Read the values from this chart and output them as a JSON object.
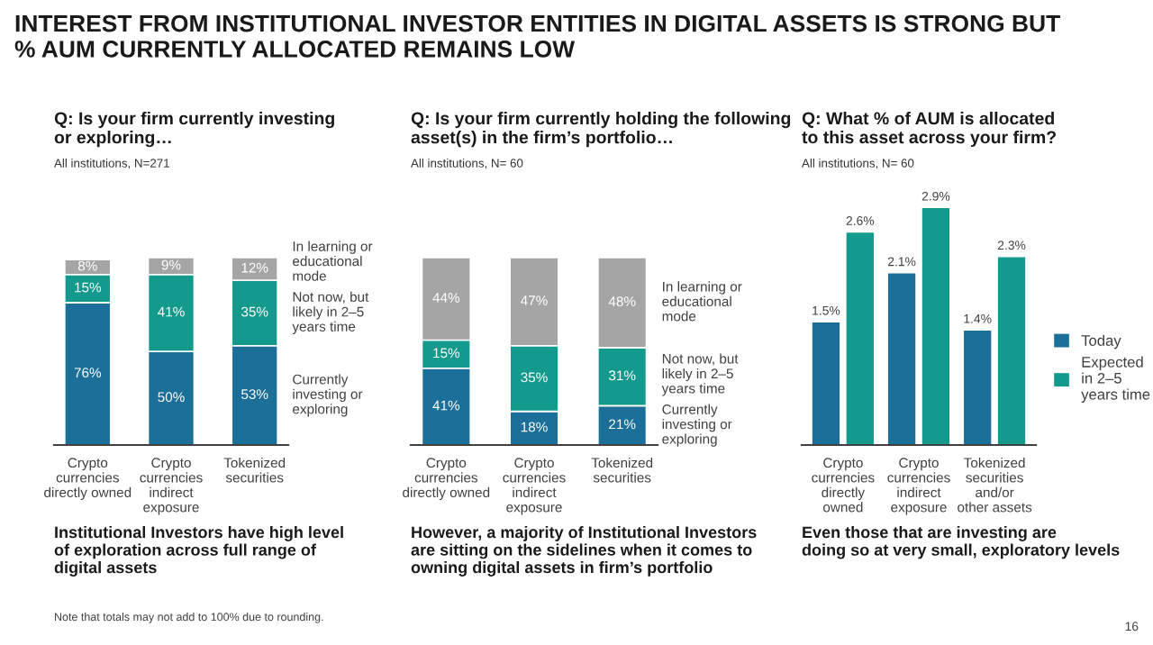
{
  "chart_data": [
    {
      "type": "bar",
      "stacked": true,
      "title": "Q: Is your firm currently investing\nor exploring…",
      "subtitle": "All institutions, N=271",
      "categories": [
        "Crypto\ncurrencies\ndirectly owned",
        "Crypto\ncurrencies\nindirect\nexposure",
        "Tokenized\nsecurities"
      ],
      "series": [
        {
          "name": "Currently\ninvesting or\nexploring",
          "color": "#1b6f98",
          "values": [
            76,
            50,
            53
          ],
          "value_labels": [
            "76%",
            "50%",
            "53%"
          ]
        },
        {
          "name": "Not now, but\nlikely in 2–5\nyears time",
          "color": "#149a8c",
          "values": [
            15,
            41,
            35
          ],
          "value_labels": [
            "15%",
            "41%",
            "35%"
          ]
        },
        {
          "name": "In learning or\neducational\nmode",
          "color": "#a5a5a5",
          "values": [
            8,
            9,
            12
          ],
          "value_labels": [
            "8%",
            "9%",
            "12%"
          ]
        }
      ],
      "legend": false,
      "tick_labels": "x",
      "annotations": [
        "INTEREST FROM INSTITUTIONAL INVESTOR ENTITIES IN DIGITAL ASSETS IS STRONG BUT\n% AUM CURRENTLY ALLOCATED REMAINS LOW",
        "Institutional Investors have high level\nof exploration across full range of\ndigital assets",
        "Note that totals may not add to 100% due to rounding."
      ]
    },
    {
      "type": "bar",
      "stacked": true,
      "title": "Q: Is your firm currently holding the following\nasset(s) in the firm’s portfolio…",
      "subtitle": "All institutions, N= 60",
      "categories": [
        "Crypto\ncurrencies\ndirectly owned",
        "Crypto\ncurrencies\nindirect\nexposure",
        "Tokenized\nsecurities"
      ],
      "series": [
        {
          "name": "Currently\ninvesting or\nexploring",
          "color": "#1b6f98",
          "values": [
            41,
            18,
            21
          ],
          "value_labels": [
            "41%",
            "18%",
            "21%"
          ]
        },
        {
          "name": "Not now, but\nlikely in 2–5\nyears time",
          "color": "#149a8c",
          "values": [
            15,
            35,
            31
          ],
          "value_labels": [
            "15%",
            "35%",
            "31%"
          ]
        },
        {
          "name": "In learning or\neducational\nmode",
          "color": "#a5a5a5",
          "values": [
            44,
            47,
            48
          ],
          "value_labels": [
            "44%",
            "47%",
            "48%"
          ]
        }
      ],
      "legend": false,
      "tick_labels": "x",
      "annotations": [
        "However, a majority of Institutional Investors\nare sitting on the sidelines when it comes to\nowning digital assets in firm’s portfolio"
      ]
    },
    {
      "type": "bar",
      "title": "Q: What % of AUM is allocated\nto this asset across your firm?",
      "subtitle": "All institutions, N= 60",
      "categories": [
        "Crypto\ncurrencies\ndirectly\nowned",
        "Crypto\ncurrencies\nindirect\nexposure",
        "Tokenized\nsecurities\nand/or\nother assets"
      ],
      "series": [
        {
          "name": "Today",
          "color": "#1b6f98",
          "values": [
            1.5,
            2.1,
            1.4
          ],
          "value_labels": [
            "1.5%",
            "2.1%",
            "1.4%"
          ]
        },
        {
          "name": "Expected\nin 2–5\nyears time",
          "color": "#149a8c",
          "values": [
            2.6,
            2.9,
            2.3
          ],
          "value_labels": [
            "2.6%",
            "2.9%",
            "2.3%"
          ]
        }
      ],
      "legend": "right",
      "tick_labels": "x",
      "annotations": [
        "Even those that are investing are\ndoing so at very small, exploratory levels",
        "16"
      ]
    }
  ]
}
